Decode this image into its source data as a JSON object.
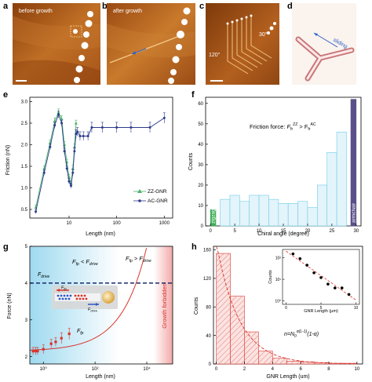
{
  "panels": {
    "a": {
      "letter": "a",
      "label": "before growth"
    },
    "b": {
      "letter": "b",
      "label": "after growth"
    },
    "c": {
      "letter": "c",
      "angle_top": "30°",
      "angle_left": "120°"
    },
    "d": {
      "letter": "d",
      "label": "sliding"
    },
    "e": {
      "letter": "e"
    },
    "f": {
      "letter": "f"
    },
    "g": {
      "letter": "g"
    },
    "h": {
      "letter": "h"
    }
  },
  "colors": {
    "afm_dark": "#5a2a08",
    "afm_mid": "#b7651e",
    "afm_light": "#e1a14f",
    "zz": "#4db36b",
    "ac": "#2c3a8c",
    "hist_fill": "#e3f4fb",
    "hist_edge": "#6fcde8",
    "zigzag_bar": "#3fae5a",
    "armchair_bar": "#5a4f8a",
    "g_blue": "#bfe6f5",
    "g_red": "#f6c4c4",
    "red": "#d9332b",
    "navy": "#1a2a6c",
    "h_fill": "#fbe3e1"
  },
  "chart_data": [
    {
      "id": "e",
      "type": "line",
      "xlabel": "Length (nm)",
      "ylabel": "Friction (nN)",
      "xscale": "log",
      "xlim": [
        1.5,
        1500
      ],
      "ylim": [
        0.3,
        3.1
      ],
      "xticks": [
        1,
        10,
        100,
        1000
      ],
      "xtick_labels": [
        "1",
        "10",
        "100",
        "1000"
      ],
      "yticks": [
        0.5,
        1.0,
        1.5,
        2.0,
        2.5,
        3.0
      ],
      "ytick_labels": [
        "0.5",
        "1.0",
        "1.5",
        "2.0",
        "2.5",
        "3.0"
      ],
      "legend_position": "lower-right",
      "series": [
        {
          "name": "ZZ-GNR",
          "marker": "triangle",
          "x": [
            2,
            3,
            4,
            5,
            6,
            7,
            8,
            9,
            10,
            11,
            12,
            13,
            14
          ],
          "y": [
            0.55,
            1.45,
            2.05,
            2.55,
            2.75,
            2.6,
            2.0,
            1.6,
            1.25,
            1.1,
            1.45,
            1.95,
            2.5
          ],
          "err": [
            0.05,
            0.06,
            0.06,
            0.07,
            0.08,
            0.07,
            0.07,
            0.06,
            0.06,
            0.06,
            0.07,
            0.07,
            0.07
          ]
        },
        {
          "name": "AC-GNR",
          "marker": "circle",
          "x": [
            2,
            3,
            4,
            5,
            6,
            7,
            8,
            9,
            10,
            11,
            12,
            13,
            14,
            15,
            17,
            20,
            25,
            30,
            50,
            100,
            200,
            500,
            1000
          ],
          "y": [
            0.45,
            1.35,
            1.95,
            2.45,
            2.7,
            2.5,
            1.85,
            1.45,
            1.15,
            1.05,
            1.35,
            1.85,
            2.25,
            2.3,
            2.2,
            2.2,
            2.2,
            2.4,
            2.4,
            2.4,
            2.4,
            2.4,
            2.62
          ],
          "err": [
            0.05,
            0.06,
            0.06,
            0.07,
            0.08,
            0.07,
            0.07,
            0.06,
            0.06,
            0.06,
            0.07,
            0.07,
            0.1,
            0.1,
            0.1,
            0.1,
            0.1,
            0.12,
            0.12,
            0.12,
            0.12,
            0.12,
            0.12
          ]
        }
      ]
    },
    {
      "id": "f",
      "type": "bar",
      "xlabel": "Chiral angle (degree)",
      "ylabel": "Counts",
      "xlim": [
        -1,
        31
      ],
      "ylim": [
        0,
        63
      ],
      "xticks": [
        0,
        5,
        10,
        15,
        20,
        25,
        30
      ],
      "xtick_labels": [
        "0",
        "5",
        "10",
        "15",
        "20",
        "25",
        "30"
      ],
      "yticks": [
        0,
        10,
        20,
        30,
        40,
        50,
        60
      ],
      "ytick_labels": [
        "0",
        "10",
        "20",
        "30",
        "40",
        "50",
        "60"
      ],
      "annotation_label": "Friction force: ",
      "annotation": "F",
      "annotation_sub1": "fr",
      "annotation_sup1": "ZZ",
      "annotation_op": " > F",
      "annotation_sub2": "fr",
      "annotation_sup2": "AC",
      "bins": [
        [
          0,
          2
        ],
        [
          2,
          4
        ],
        [
          4,
          6
        ],
        [
          6,
          8
        ],
        [
          8,
          10
        ],
        [
          10,
          12
        ],
        [
          12,
          14
        ],
        [
          14,
          16
        ],
        [
          16,
          18
        ],
        [
          18,
          20
        ],
        [
          20,
          22
        ],
        [
          22,
          24
        ],
        [
          24,
          26
        ],
        [
          26,
          28
        ],
        [
          28,
          30
        ]
      ],
      "values": [
        8,
        13,
        15,
        12,
        15,
        15,
        13,
        11,
        11,
        12,
        9,
        20,
        36,
        46,
        62
      ],
      "special": [
        {
          "index": 0,
          "label": "zigzag"
        },
        {
          "index": 14,
          "label": "armchair"
        }
      ]
    },
    {
      "id": "g",
      "type": "scatter",
      "xlabel": "Length (nm)",
      "ylabel": "Force (nN)",
      "xscale": "log",
      "xlim": [
        0.3,
        100000
      ],
      "ylim": [
        1.8,
        5.0
      ],
      "xticks": [
        1,
        100,
        10000
      ],
      "xtick_labels": [
        "10⁰",
        "10²",
        "10⁴"
      ],
      "yticks": [
        2,
        3,
        4,
        5
      ],
      "ytick_labels": [
        "2",
        "3",
        "4",
        "5"
      ],
      "drive_force": 4.0,
      "drive_label": "F",
      "drive_sub": "drive",
      "fp_label": "F",
      "fp_sub": "fp",
      "left_region_label": {
        "a": "F",
        "a_sub": "fp",
        "op": " < F",
        "b_sub": "drive"
      },
      "right_region_label": {
        "a": "F",
        "a_sub": "fp",
        "op": " > F",
        "b_sub": "drive"
      },
      "forbidden_label": "Growth forbidden",
      "inset_labels": {
        "fp": "F",
        "fp_sub": "fp",
        "drive": "F",
        "drive_sub": "drive"
      },
      "points_x": [
        0.4,
        0.5,
        0.6,
        1,
        2,
        3,
        5,
        10
      ],
      "points_y": [
        2.15,
        2.15,
        2.15,
        2.2,
        2.35,
        2.4,
        2.5,
        2.62
      ],
      "points_err": [
        0.1,
        0.1,
        0.1,
        0.12,
        0.12,
        0.12,
        0.15,
        0.15
      ]
    },
    {
      "id": "h",
      "type": "bar",
      "xlabel": "GNR Length (um)",
      "ylabel": "Counts",
      "xlim": [
        -0.2,
        10.4
      ],
      "ylim": [
        0,
        165
      ],
      "xticks": [
        0,
        2,
        4,
        6,
        8,
        10
      ],
      "xtick_labels": [
        "0",
        "2",
        "4",
        "6",
        "8",
        "10"
      ],
      "yticks": [
        0,
        40,
        80,
        120,
        160
      ],
      "ytick_labels": [
        "0",
        "40",
        "80",
        "120",
        "160"
      ],
      "bins": [
        [
          0,
          1
        ],
        [
          1,
          2
        ],
        [
          2,
          3
        ],
        [
          3,
          4
        ],
        [
          4,
          5
        ],
        [
          5,
          6
        ],
        [
          6,
          7
        ],
        [
          7,
          8
        ],
        [
          8,
          9
        ],
        [
          9,
          10
        ]
      ],
      "values": [
        155,
        95,
        45,
        18,
        8,
        4,
        3,
        2,
        1,
        1
      ],
      "fit_label_text": "n=N",
      "fit_label_sub": "0",
      "fit_label_sup": "α(L-1)",
      "fit_label_tail": "(1-α)",
      "inset": {
        "xlabel": "GNR Length (μm)",
        "ylabel": "Counts",
        "yscale": "log",
        "xlim": [
          -0.5,
          10.5
        ],
        "ylim": [
          0.7,
          240
        ],
        "xticks": [
          0,
          5,
          10
        ],
        "xtick_labels": [
          "0",
          "5",
          "10"
        ],
        "yticks": [
          1,
          10,
          100
        ],
        "ytick_labels": [
          "10⁰",
          "10¹",
          "10²"
        ],
        "x": [
          1,
          2,
          3,
          4,
          5,
          6,
          7,
          8,
          9
        ],
        "y": [
          150,
          90,
          45,
          20,
          12,
          6,
          4,
          4,
          2
        ]
      }
    }
  ]
}
